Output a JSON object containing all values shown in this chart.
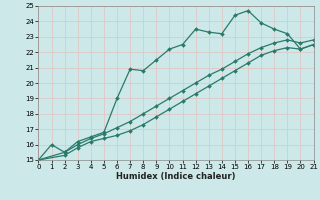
{
  "title": "",
  "xlabel": "Humidex (Indice chaleur)",
  "xlim": [
    0,
    21
  ],
  "ylim": [
    15,
    25
  ],
  "xticks": [
    0,
    1,
    2,
    3,
    4,
    5,
    6,
    7,
    8,
    9,
    10,
    11,
    12,
    13,
    14,
    15,
    16,
    17,
    18,
    19,
    20,
    21
  ],
  "yticks": [
    15,
    16,
    17,
    18,
    19,
    20,
    21,
    22,
    23,
    24,
    25
  ],
  "bg_color": "#cce8e8",
  "grid_color": "#b0d8d8",
  "line_color": "#2a7a6a",
  "lines": [
    {
      "x": [
        0,
        1,
        2,
        3,
        4,
        5,
        6,
        7,
        8,
        9,
        10,
        11,
        12,
        13,
        14,
        15,
        16,
        17,
        18,
        19,
        20,
        21
      ],
      "y": [
        15,
        16,
        15.5,
        16.2,
        16.5,
        16.8,
        19.0,
        20.9,
        20.8,
        21.5,
        22.2,
        22.5,
        23.5,
        23.3,
        23.2,
        24.4,
        24.7,
        23.9,
        23.5,
        23.2,
        22.2,
        22.5
      ]
    },
    {
      "x": [
        0,
        2,
        3,
        4,
        5,
        6,
        7,
        8,
        9,
        10,
        11,
        12,
        13,
        14,
        15,
        16,
        17,
        18,
        19,
        20,
        21
      ],
      "y": [
        15,
        15.3,
        15.8,
        16.2,
        16.4,
        16.6,
        16.9,
        17.3,
        17.8,
        18.3,
        18.8,
        19.3,
        19.8,
        20.3,
        20.8,
        21.3,
        21.8,
        22.1,
        22.3,
        22.2,
        22.5
      ]
    },
    {
      "x": [
        0,
        2,
        3,
        4,
        5,
        6,
        7,
        8,
        9,
        10,
        11,
        12,
        13,
        14,
        15,
        16,
        17,
        18,
        19,
        20,
        21
      ],
      "y": [
        15,
        15.5,
        16.0,
        16.4,
        16.7,
        17.1,
        17.5,
        18.0,
        18.5,
        19.0,
        19.5,
        20.0,
        20.5,
        20.9,
        21.4,
        21.9,
        22.3,
        22.6,
        22.8,
        22.6,
        22.8
      ]
    }
  ]
}
